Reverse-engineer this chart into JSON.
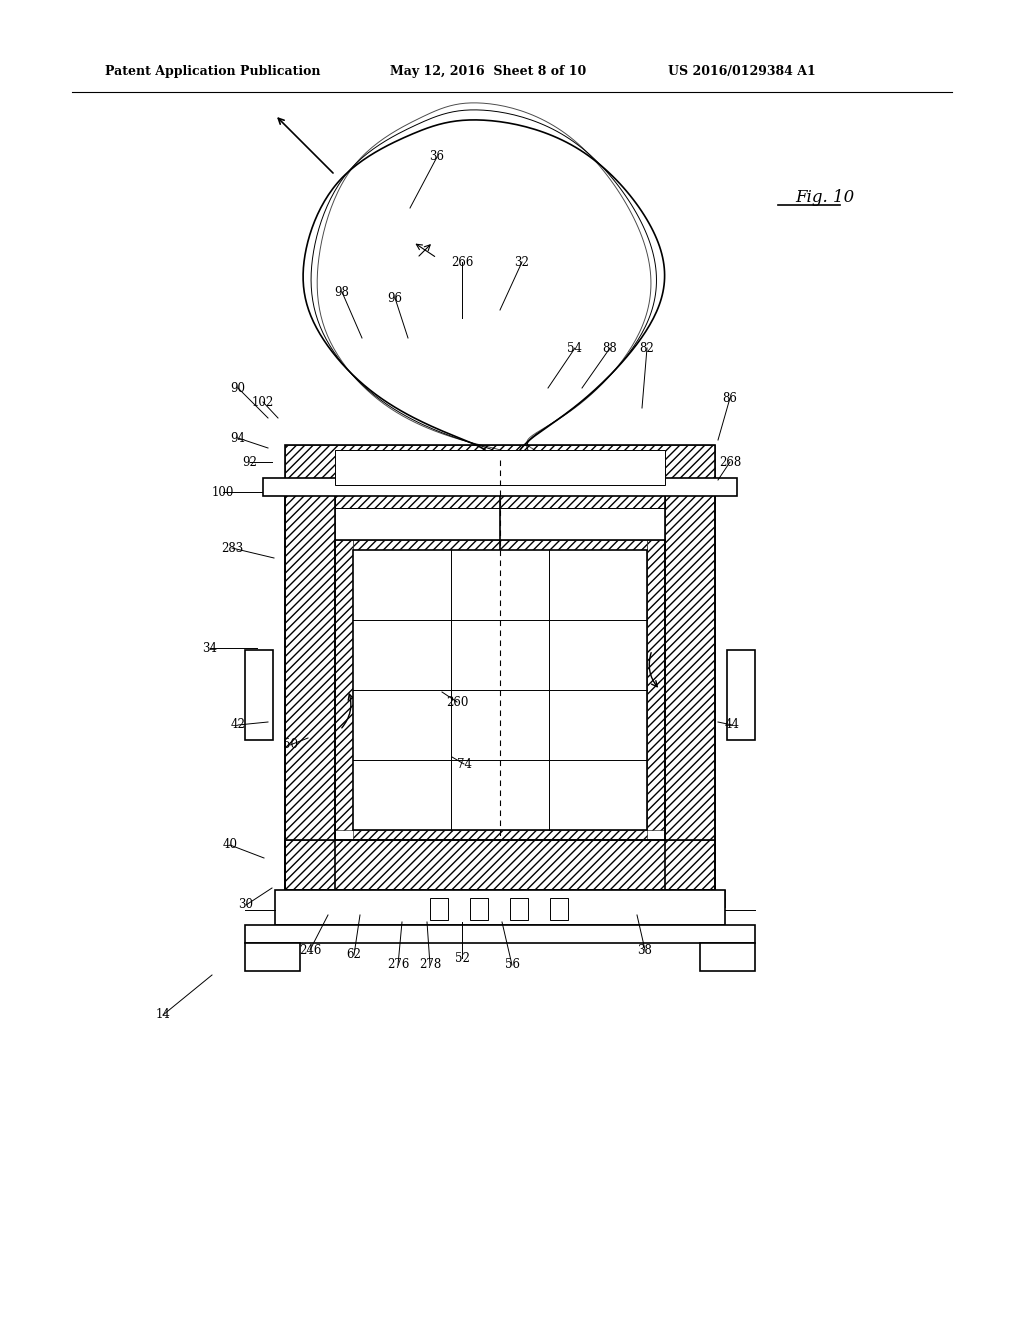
{
  "bg_color": "#ffffff",
  "line_color": "#000000",
  "header_text": "Patent Application Publication",
  "header_date": "May 12, 2016  Sheet 8 of 10",
  "header_patent": "US 2016/0129384 A1",
  "fig_label": "Fig. 10"
}
